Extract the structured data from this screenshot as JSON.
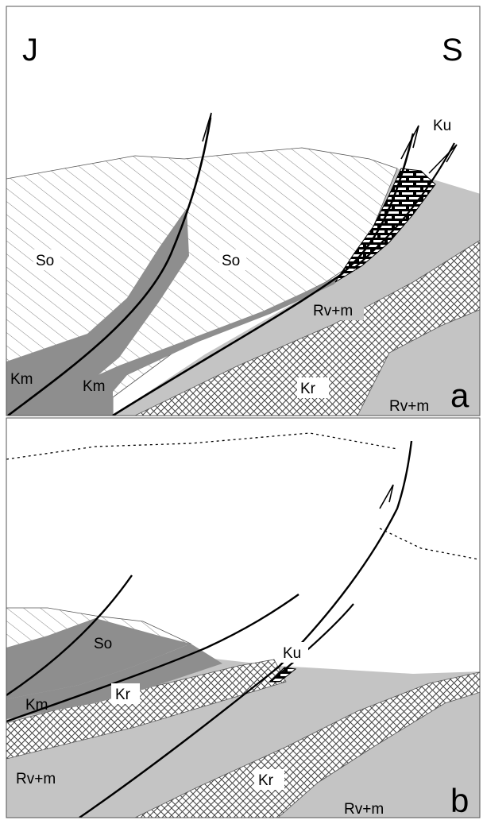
{
  "header": {
    "left_label": "J",
    "right_label": "S"
  },
  "panel_a": {
    "letter": "a",
    "units": {
      "so_left": "So",
      "so_center": "So",
      "km_left": "Km",
      "km_bottom": "Km",
      "ku": "Ku",
      "rv_upper": "Rv+m",
      "kr": "Kr",
      "rv_lower": "Rv+m"
    }
  },
  "panel_b": {
    "letter": "b",
    "units": {
      "so": "So",
      "ku": "Ku",
      "km": "Km",
      "kr_upper": "Kr",
      "rv_left": "Rv+m",
      "kr_lower": "Kr",
      "rv_right": "Rv+m"
    }
  },
  "colors": {
    "light_gray": "#c4c4c4",
    "dark_gray": "#8e8e8e",
    "fault_line": "#000000",
    "background": "#ffffff"
  }
}
